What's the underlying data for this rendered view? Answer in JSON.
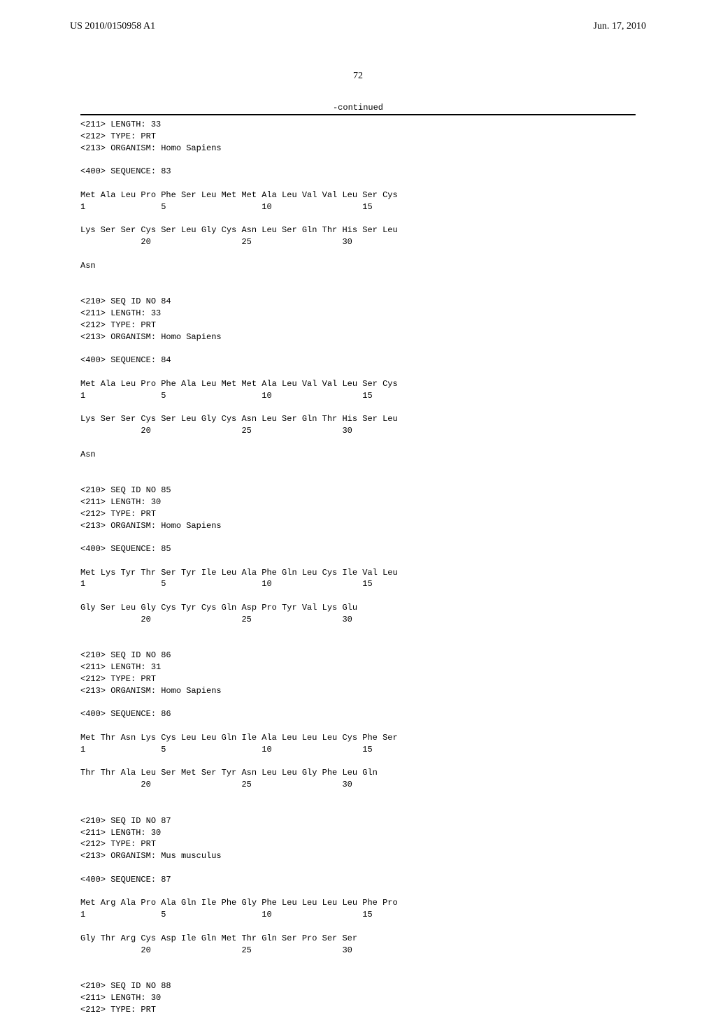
{
  "header": {
    "pub_number": "US 2010/0150958 A1",
    "pub_date": "Jun. 17, 2010",
    "page_number": "72"
  },
  "continued_label": "-continued",
  "sequences": [
    {
      "meta": [
        "<211> LENGTH: 33",
        "<212> TYPE: PRT",
        "<213> ORGANISM: Homo Sapiens"
      ],
      "seq_label": "<400> SEQUENCE: 83",
      "seq_lines": [
        "Met Ala Leu Pro Phe Ser Leu Met Met Ala Leu Val Val Leu Ser Cys",
        "1               5                   10                  15",
        "",
        "Lys Ser Ser Cys Ser Leu Gly Cys Asn Leu Ser Gln Thr His Ser Leu",
        "            20                  25                  30",
        "",
        "Asn"
      ]
    },
    {
      "meta": [
        "<210> SEQ ID NO 84",
        "<211> LENGTH: 33",
        "<212> TYPE: PRT",
        "<213> ORGANISM: Homo Sapiens"
      ],
      "seq_label": "<400> SEQUENCE: 84",
      "seq_lines": [
        "Met Ala Leu Pro Phe Ala Leu Met Met Ala Leu Val Val Leu Ser Cys",
        "1               5                   10                  15",
        "",
        "Lys Ser Ser Cys Ser Leu Gly Cys Asn Leu Ser Gln Thr His Ser Leu",
        "            20                  25                  30",
        "",
        "Asn"
      ]
    },
    {
      "meta": [
        "<210> SEQ ID NO 85",
        "<211> LENGTH: 30",
        "<212> TYPE: PRT",
        "<213> ORGANISM: Homo Sapiens"
      ],
      "seq_label": "<400> SEQUENCE: 85",
      "seq_lines": [
        "Met Lys Tyr Thr Ser Tyr Ile Leu Ala Phe Gln Leu Cys Ile Val Leu",
        "1               5                   10                  15",
        "",
        "Gly Ser Leu Gly Cys Tyr Cys Gln Asp Pro Tyr Val Lys Glu",
        "            20                  25                  30"
      ]
    },
    {
      "meta": [
        "<210> SEQ ID NO 86",
        "<211> LENGTH: 31",
        "<212> TYPE: PRT",
        "<213> ORGANISM: Homo Sapiens"
      ],
      "seq_label": "<400> SEQUENCE: 86",
      "seq_lines": [
        "Met Thr Asn Lys Cys Leu Leu Gln Ile Ala Leu Leu Leu Cys Phe Ser",
        "1               5                   10                  15",
        "",
        "Thr Thr Ala Leu Ser Met Ser Tyr Asn Leu Leu Gly Phe Leu Gln",
        "            20                  25                  30"
      ]
    },
    {
      "meta": [
        "<210> SEQ ID NO 87",
        "<211> LENGTH: 30",
        "<212> TYPE: PRT",
        "<213> ORGANISM: Mus musculus"
      ],
      "seq_label": "<400> SEQUENCE: 87",
      "seq_lines": [
        "Met Arg Ala Pro Ala Gln Ile Phe Gly Phe Leu Leu Leu Leu Phe Pro",
        "1               5                   10                  15",
        "",
        "Gly Thr Arg Cys Asp Ile Gln Met Thr Gln Ser Pro Ser Ser",
        "            20                  25                  30"
      ]
    },
    {
      "meta": [
        "<210> SEQ ID NO 88",
        "<211> LENGTH: 30",
        "<212> TYPE: PRT"
      ],
      "seq_label": null,
      "seq_lines": []
    }
  ]
}
